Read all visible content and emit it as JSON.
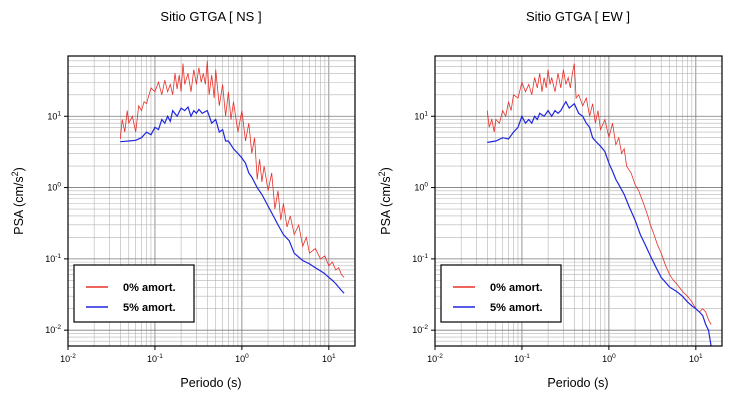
{
  "chart_data": [
    {
      "type": "line",
      "title": "Sitio GTGA [ NS ]",
      "xlabel": "Periodo (s)",
      "ylabel_main": "PSA (cm/s",
      "ylabel_sup": "2",
      "ylabel_end": ")",
      "xscale": "log",
      "yscale": "log",
      "xlim": [
        0.01,
        20
      ],
      "ylim": [
        0.006,
        70
      ],
      "grid": true,
      "legend": "bottom-left",
      "xticks": [
        {
          "base": "10",
          "exp": "-2",
          "value": 0.01
        },
        {
          "base": "10",
          "exp": "-1",
          "value": 0.1
        },
        {
          "base": "10",
          "exp": "0",
          "value": 1
        },
        {
          "base": "10",
          "exp": "1",
          "value": 10
        }
      ],
      "yticks": [
        {
          "base": "10",
          "exp": "-2",
          "value": 0.01
        },
        {
          "base": "10",
          "exp": "-1",
          "value": 0.1
        },
        {
          "base": "10",
          "exp": "0",
          "value": 1
        },
        {
          "base": "10",
          "exp": "1",
          "value": 10
        }
      ],
      "series": [
        {
          "name": "0% amort.",
          "color": "#e8302a",
          "x": [
            0.04,
            0.042,
            0.045,
            0.048,
            0.05,
            0.055,
            0.06,
            0.065,
            0.07,
            0.075,
            0.08,
            0.09,
            0.1,
            0.11,
            0.12,
            0.13,
            0.14,
            0.15,
            0.16,
            0.17,
            0.18,
            0.19,
            0.2,
            0.21,
            0.22,
            0.24,
            0.26,
            0.28,
            0.3,
            0.32,
            0.34,
            0.36,
            0.38,
            0.4,
            0.42,
            0.45,
            0.48,
            0.5,
            0.55,
            0.6,
            0.65,
            0.7,
            0.75,
            0.8,
            0.9,
            1.0,
            1.1,
            1.2,
            1.3,
            1.4,
            1.5,
            1.6,
            1.7,
            1.8,
            2.0,
            2.2,
            2.4,
            2.6,
            2.8,
            3.0,
            3.3,
            3.6,
            4.0,
            4.5,
            5.0,
            5.5,
            6.0,
            7.0,
            8.0,
            9.0,
            10,
            11,
            12,
            13,
            14,
            15
          ],
          "y": [
            4.8,
            9,
            6,
            12,
            8,
            10,
            6,
            14,
            12,
            16,
            15,
            25,
            22,
            30,
            20,
            32,
            22,
            28,
            20,
            40,
            24,
            38,
            22,
            55,
            28,
            40,
            22,
            45,
            28,
            48,
            30,
            40,
            28,
            60,
            20,
            38,
            18,
            45,
            14,
            28,
            10,
            22,
            9,
            16,
            6,
            12,
            4.5,
            8,
            3,
            5,
            1.3,
            2.5,
            1.2,
            2,
            0.9,
            1.6,
            0.5,
            0.9,
            0.35,
            0.6,
            0.28,
            0.4,
            0.22,
            0.3,
            0.15,
            0.2,
            0.12,
            0.14,
            0.1,
            0.11,
            0.08,
            0.09,
            0.07,
            0.075,
            0.06,
            0.055
          ]
        },
        {
          "name": "5% amort.",
          "color": "#1f26e0",
          "x": [
            0.04,
            0.05,
            0.06,
            0.07,
            0.08,
            0.09,
            0.1,
            0.11,
            0.12,
            0.13,
            0.14,
            0.15,
            0.16,
            0.18,
            0.2,
            0.22,
            0.24,
            0.26,
            0.28,
            0.3,
            0.32,
            0.35,
            0.4,
            0.45,
            0.5,
            0.55,
            0.6,
            0.65,
            0.7,
            0.8,
            0.9,
            1.0,
            1.1,
            1.2,
            1.3,
            1.5,
            1.7,
            2.0,
            2.3,
            2.6,
            3.0,
            3.5,
            4.0,
            5.0,
            6.0,
            7.0,
            8.0,
            9.0,
            10,
            11,
            12,
            13,
            14,
            15
          ],
          "y": [
            4.4,
            4.5,
            4.6,
            5,
            6,
            5.5,
            7,
            6.5,
            9,
            8,
            10,
            8.5,
            12,
            10,
            13,
            12,
            13.5,
            10,
            12,
            11,
            12.5,
            11,
            12,
            8,
            9,
            6,
            6.5,
            4.5,
            4.5,
            3.5,
            3,
            2.6,
            2.2,
            1.6,
            1.4,
            1.0,
            0.8,
            0.55,
            0.4,
            0.3,
            0.22,
            0.18,
            0.12,
            0.095,
            0.085,
            0.075,
            0.068,
            0.062,
            0.055,
            0.05,
            0.045,
            0.04,
            0.036,
            0.033
          ]
        }
      ]
    },
    {
      "type": "line",
      "title": "Sitio GTGA [ EW ]",
      "xlabel": "Periodo (s)",
      "ylabel_main": "PSA (cm/s",
      "ylabel_sup": "2",
      "ylabel_end": ")",
      "xscale": "log",
      "yscale": "log",
      "xlim": [
        0.01,
        20
      ],
      "ylim": [
        0.006,
        70
      ],
      "grid": true,
      "legend": "bottom-left",
      "xticks": [
        {
          "base": "10",
          "exp": "-2",
          "value": 0.01
        },
        {
          "base": "10",
          "exp": "-1",
          "value": 0.1
        },
        {
          "base": "10",
          "exp": "0",
          "value": 1
        },
        {
          "base": "10",
          "exp": "1",
          "value": 10
        }
      ],
      "yticks": [
        {
          "base": "10",
          "exp": "-2",
          "value": 0.01
        },
        {
          "base": "10",
          "exp": "-1",
          "value": 0.1
        },
        {
          "base": "10",
          "exp": "0",
          "value": 1
        },
        {
          "base": "10",
          "exp": "1",
          "value": 10
        }
      ],
      "series": [
        {
          "name": "0% amort.",
          "color": "#e8302a",
          "x": [
            0.04,
            0.042,
            0.045,
            0.048,
            0.05,
            0.055,
            0.06,
            0.065,
            0.07,
            0.075,
            0.08,
            0.09,
            0.1,
            0.11,
            0.12,
            0.13,
            0.14,
            0.15,
            0.16,
            0.17,
            0.18,
            0.19,
            0.2,
            0.21,
            0.22,
            0.24,
            0.26,
            0.28,
            0.3,
            0.32,
            0.34,
            0.36,
            0.38,
            0.4,
            0.42,
            0.45,
            0.5,
            0.55,
            0.6,
            0.65,
            0.7,
            0.75,
            0.8,
            0.9,
            1.0,
            1.1,
            1.2,
            1.3,
            1.4,
            1.5,
            1.6,
            1.8,
            2.0,
            2.2,
            2.5,
            2.8,
            3.0,
            3.3,
            3.6,
            4.0,
            4.5,
            5.0,
            5.5,
            6.0,
            7.0,
            8.0,
            9.0,
            10,
            11,
            12,
            13,
            14,
            15
          ],
          "y": [
            12,
            7,
            9,
            6,
            9,
            8,
            12,
            10,
            16,
            12,
            20,
            18,
            30,
            22,
            28,
            20,
            35,
            25,
            40,
            22,
            35,
            25,
            45,
            28,
            35,
            22,
            40,
            25,
            45,
            28,
            35,
            25,
            40,
            55,
            18,
            20,
            14,
            18,
            10,
            15,
            8,
            12,
            6.5,
            9,
            5,
            8,
            4,
            5,
            3,
            3.5,
            2,
            1.6,
            1.1,
            0.9,
            0.6,
            0.4,
            0.3,
            0.22,
            0.16,
            0.12,
            0.08,
            0.06,
            0.05,
            0.045,
            0.035,
            0.03,
            0.025,
            0.02,
            0.018,
            0.02,
            0.018,
            0.014,
            0.012
          ]
        },
        {
          "name": "5% amort.",
          "color": "#1f26e0",
          "x": [
            0.04,
            0.05,
            0.06,
            0.07,
            0.08,
            0.09,
            0.1,
            0.11,
            0.12,
            0.13,
            0.14,
            0.15,
            0.16,
            0.18,
            0.2,
            0.22,
            0.24,
            0.26,
            0.28,
            0.3,
            0.32,
            0.35,
            0.4,
            0.45,
            0.5,
            0.55,
            0.6,
            0.65,
            0.7,
            0.8,
            0.9,
            1.0,
            1.1,
            1.2,
            1.3,
            1.5,
            1.7,
            2.0,
            2.3,
            2.6,
            3.0,
            3.5,
            4.0,
            5.0,
            6.0,
            7.0,
            8.0,
            9.0,
            10,
            11,
            12,
            13,
            14,
            15
          ],
          "y": [
            4.3,
            4.5,
            5,
            4.8,
            6,
            7,
            10,
            8,
            9,
            8,
            10,
            9,
            11,
            10,
            12,
            10,
            12,
            11,
            12,
            14,
            16,
            13,
            15,
            11,
            10,
            8,
            7,
            5,
            4.5,
            3.8,
            3.2,
            2.2,
            1.7,
            1.3,
            1.1,
            0.8,
            0.55,
            0.35,
            0.22,
            0.16,
            0.11,
            0.075,
            0.055,
            0.04,
            0.035,
            0.03,
            0.025,
            0.022,
            0.02,
            0.018,
            0.016,
            0.012,
            0.01,
            0.006
          ]
        }
      ]
    }
  ]
}
